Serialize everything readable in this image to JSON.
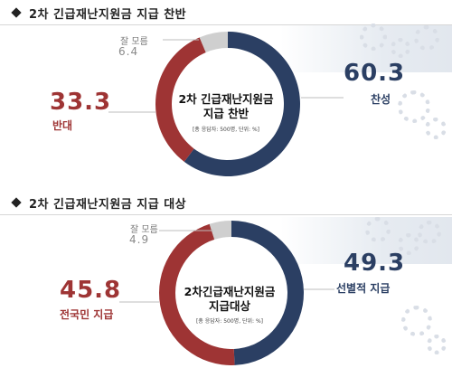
{
  "chart_data": [
    {
      "type": "pie",
      "title": "2차 긴급재난지원금 지급 찬반",
      "center_title_lines": [
        "2차 긴급재난지원금",
        "지급 찬반"
      ],
      "center_note": "[총 응답자: 500명, 단위: %]",
      "slices": [
        {
          "label": "찬성",
          "value": 60.3,
          "value_text": "60.3",
          "color": "#2b3f63"
        },
        {
          "label": "반대",
          "value": 33.3,
          "value_text": "33.3",
          "color": "#9e3434"
        },
        {
          "label": "잘 모름",
          "value": 6.4,
          "value_text": "6.4",
          "color": "#cfcfcf"
        }
      ]
    },
    {
      "type": "pie",
      "title": "2차 긴급재난지원금 지급 대상",
      "center_title_lines": [
        "2차긴급재난지원금",
        "지급대상"
      ],
      "center_note": "[총 응답자: 500명, 단위: %]",
      "slices": [
        {
          "label": "선별적 지급",
          "value": 49.3,
          "value_text": "49.3",
          "color": "#2b3f63"
        },
        {
          "label": "전국민 지급",
          "value": 45.8,
          "value_text": "45.8",
          "color": "#9e3434"
        },
        {
          "label": "잘 모름",
          "value": 4.9,
          "value_text": "4.9",
          "color": "#cfcfcf"
        }
      ]
    }
  ]
}
